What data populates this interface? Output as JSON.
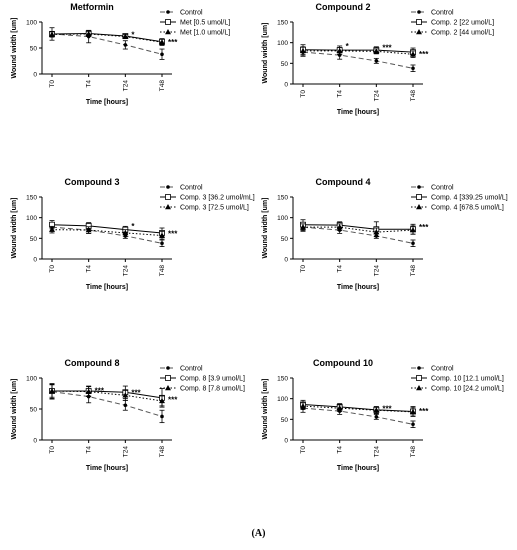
{
  "figure_label": "(A)",
  "colors": {
    "line": "#000000",
    "control_line": "#555555",
    "axis": "#000000"
  },
  "chart_data": [
    {
      "type": "line",
      "title": "Metformin",
      "xlabel": "Time [hours]",
      "ylabel": "Wound width [um]",
      "categories": [
        "T0",
        "T4",
        "T24",
        "T48"
      ],
      "ylim": [
        0,
        100
      ],
      "yticks": [
        0,
        50,
        100
      ],
      "legend_position": "top-right",
      "series": [
        {
          "name": "Control",
          "marker": "dot",
          "dash": "dash",
          "values": [
            77,
            72,
            56,
            38
          ],
          "errors": [
            12,
            12,
            8,
            10
          ]
        },
        {
          "name": "Met [0.5 umol/L]",
          "marker": "square",
          "dash": "solid",
          "values": [
            77,
            78,
            73,
            62
          ],
          "errors": [
            5,
            4,
            4,
            6
          ]
        },
        {
          "name": "Met [1.0 umol/L]",
          "marker": "triangle",
          "dash": "dot",
          "values": [
            76,
            77,
            72,
            61
          ],
          "errors": [
            5,
            5,
            4,
            6
          ]
        }
      ],
      "annotations": [
        {
          "category": "T24",
          "text": "*",
          "at": 76
        },
        {
          "category": "T48",
          "text": "***",
          "at": 62
        }
      ]
    },
    {
      "type": "line",
      "title": "Compound 2",
      "xlabel": "Time [hours]",
      "ylabel": "Wound width [um]",
      "categories": [
        "T0",
        "T4",
        "T24",
        "T48"
      ],
      "ylim": [
        0,
        150
      ],
      "yticks": [
        0,
        50,
        100,
        150
      ],
      "legend_position": "top-right",
      "series": [
        {
          "name": "Control",
          "marker": "dot",
          "dash": "dash",
          "values": [
            77,
            70,
            56,
            38
          ],
          "errors": [
            10,
            10,
            6,
            8
          ]
        },
        {
          "name": "Comp. 2 [22 umol/L]",
          "marker": "square",
          "dash": "solid",
          "values": [
            83,
            82,
            82,
            77
          ],
          "errors": [
            12,
            10,
            8,
            10
          ]
        },
        {
          "name": "Comp. 2 [44 umol/L]",
          "marker": "triangle",
          "dash": "dot",
          "values": [
            80,
            80,
            79,
            72
          ],
          "errors": [
            10,
            8,
            6,
            8
          ]
        }
      ],
      "annotations": [
        {
          "category": "T4",
          "text": "*",
          "at": 92
        },
        {
          "category": "T24",
          "text": "***",
          "at": 88
        },
        {
          "category": "T48",
          "text": "***",
          "at": 73
        }
      ]
    },
    {
      "type": "line",
      "title": "Compound 3",
      "xlabel": "Time [hours]",
      "ylabel": "Wound width [um]",
      "categories": [
        "T0",
        "T4",
        "T24",
        "T48"
      ],
      "ylim": [
        0,
        150
      ],
      "yticks": [
        0,
        50,
        100,
        150
      ],
      "legend_position": "top-right",
      "series": [
        {
          "name": "Control",
          "marker": "dot",
          "dash": "dash",
          "values": [
            77,
            70,
            56,
            38
          ],
          "errors": [
            10,
            8,
            6,
            8
          ]
        },
        {
          "name": "Comp. 3 [36.2 umol/mL]",
          "marker": "square",
          "dash": "solid",
          "values": [
            83,
            80,
            71,
            63
          ],
          "errors": [
            10,
            8,
            8,
            12
          ]
        },
        {
          "name": "Comp. 3 [72.5 umol/L]",
          "marker": "triangle",
          "dash": "dot",
          "values": [
            71,
            70,
            63,
            57
          ],
          "errors": [
            8,
            8,
            8,
            10
          ]
        }
      ],
      "annotations": [
        {
          "category": "T24",
          "text": "*",
          "at": 80
        },
        {
          "category": "T48",
          "text": "***",
          "at": 62
        }
      ]
    },
    {
      "type": "line",
      "title": "Compound 4",
      "xlabel": "Time [hours]",
      "ylabel": "Wound width [um]",
      "categories": [
        "T0",
        "T4",
        "T24",
        "T48"
      ],
      "ylim": [
        0,
        150
      ],
      "yticks": [
        0,
        50,
        100,
        150
      ],
      "legend_position": "top-right",
      "series": [
        {
          "name": "Control",
          "marker": "dot",
          "dash": "dash",
          "values": [
            77,
            70,
            56,
            38
          ],
          "errors": [
            10,
            8,
            6,
            8
          ]
        },
        {
          "name": "Comp. 4 [339.25 umol/L]",
          "marker": "square",
          "dash": "solid",
          "values": [
            83,
            82,
            72,
            72
          ],
          "errors": [
            12,
            8,
            18,
            12
          ]
        },
        {
          "name": "Comp. 4 [678.5 umol/L]",
          "marker": "triangle",
          "dash": "dot",
          "values": [
            77,
            77,
            65,
            70
          ],
          "errors": [
            8,
            8,
            10,
            10
          ]
        }
      ],
      "annotations": [
        {
          "category": "T48",
          "text": "***",
          "at": 78
        }
      ]
    },
    {
      "type": "line",
      "title": "Compound 8",
      "xlabel": "Time [hours]",
      "ylabel": "Wound width [um]",
      "categories": [
        "T0",
        "T4",
        "T24",
        "T48"
      ],
      "ylim": [
        0,
        100
      ],
      "yticks": [
        0,
        50,
        100
      ],
      "legend_position": "top-right",
      "series": [
        {
          "name": "Control",
          "marker": "dot",
          "dash": "dash",
          "values": [
            78,
            70,
            56,
            38
          ],
          "errors": [
            12,
            10,
            8,
            10
          ]
        },
        {
          "name": "Comp. 8 [3.9 umol/L]",
          "marker": "square",
          "dash": "solid",
          "values": [
            79,
            79,
            77,
            68
          ],
          "errors": [
            12,
            8,
            10,
            15
          ]
        },
        {
          "name": "Comp. 8 [7.8 umol/L]",
          "marker": "triangle",
          "dash": "dot",
          "values": [
            79,
            78,
            72,
            63
          ],
          "errors": [
            10,
            8,
            8,
            8
          ]
        }
      ],
      "annotations": [
        {
          "category": "T4",
          "text": "***",
          "at": 80
        },
        {
          "category": "T24",
          "text": "***",
          "at": 77
        },
        {
          "category": "T48",
          "text": "***",
          "at": 65
        }
      ]
    },
    {
      "type": "line",
      "title": "Compound 10",
      "xlabel": "Time [hours]",
      "ylabel": "Wound width [um]",
      "categories": [
        "T0",
        "T4",
        "T24",
        "T48"
      ],
      "ylim": [
        0,
        150
      ],
      "yticks": [
        0,
        50,
        100,
        150
      ],
      "legend_position": "top-right",
      "series": [
        {
          "name": "Control",
          "marker": "dot",
          "dash": "dash",
          "values": [
            77,
            70,
            56,
            38
          ],
          "errors": [
            10,
            8,
            6,
            8
          ]
        },
        {
          "name": "Comp. 10 [12.1 umol/L]",
          "marker": "square",
          "dash": "solid",
          "values": [
            86,
            80,
            73,
            69
          ],
          "errors": [
            10,
            8,
            8,
            12
          ]
        },
        {
          "name": "Comp. 10 [24.2 umol/L]",
          "marker": "triangle",
          "dash": "dot",
          "values": [
            82,
            77,
            72,
            68
          ],
          "errors": [
            8,
            8,
            8,
            10
          ]
        }
      ],
      "annotations": [
        {
          "category": "T24",
          "text": "***",
          "at": 76
        },
        {
          "category": "T48",
          "text": "***",
          "at": 70
        }
      ]
    }
  ]
}
